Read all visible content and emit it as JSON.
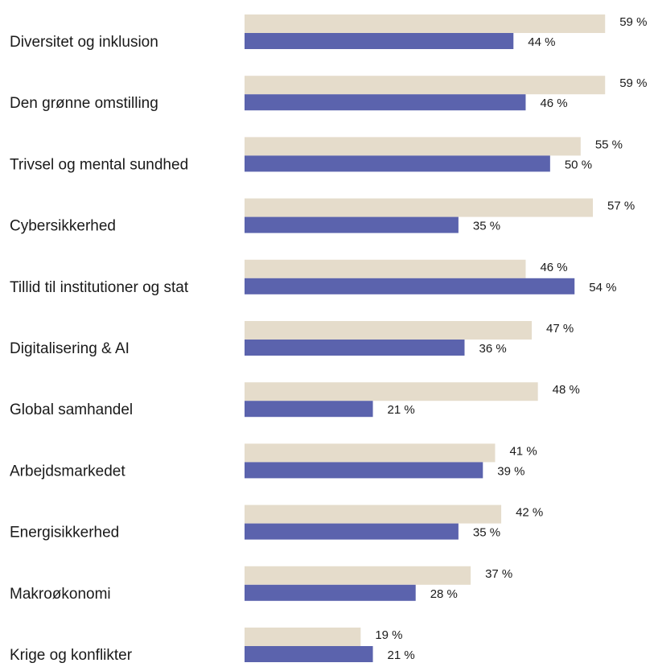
{
  "chart_data": {
    "type": "barh",
    "categories": [
      "Diversitet og inklusion",
      "Den grønne omstilling",
      "Trivsel og mental sundhed",
      "Cybersikkerhed",
      "Tillid til institutioner og stat",
      "Digitalisering & AI",
      "Global samhandel",
      "Arbejdsmarkedet",
      "Energisikkerhed",
      "Makroøkonomi",
      "Krige og konflikter"
    ],
    "series": [
      {
        "color": "#e5dccb",
        "values": [
          59,
          59,
          55,
          57,
          46,
          47,
          48,
          41,
          42,
          37,
          19
        ],
        "value_labels": [
          "59 %",
          "59 %",
          "55 %",
          "57 %",
          "46 %",
          "47 %",
          "48 %",
          "41 %",
          "42 %",
          "37 %",
          "19 %"
        ]
      },
      {
        "color": "#5b63ad",
        "values": [
          44,
          46,
          50,
          35,
          54,
          36,
          21,
          39,
          35,
          28,
          21
        ],
        "value_labels": [
          "44 %",
          "46 %",
          "50 %",
          "35 %",
          "54 %",
          "36 %",
          "21 %",
          "39 %",
          "35 %",
          "28 %",
          "21 %"
        ]
      }
    ],
    "xlim": [
      0,
      67
    ]
  }
}
